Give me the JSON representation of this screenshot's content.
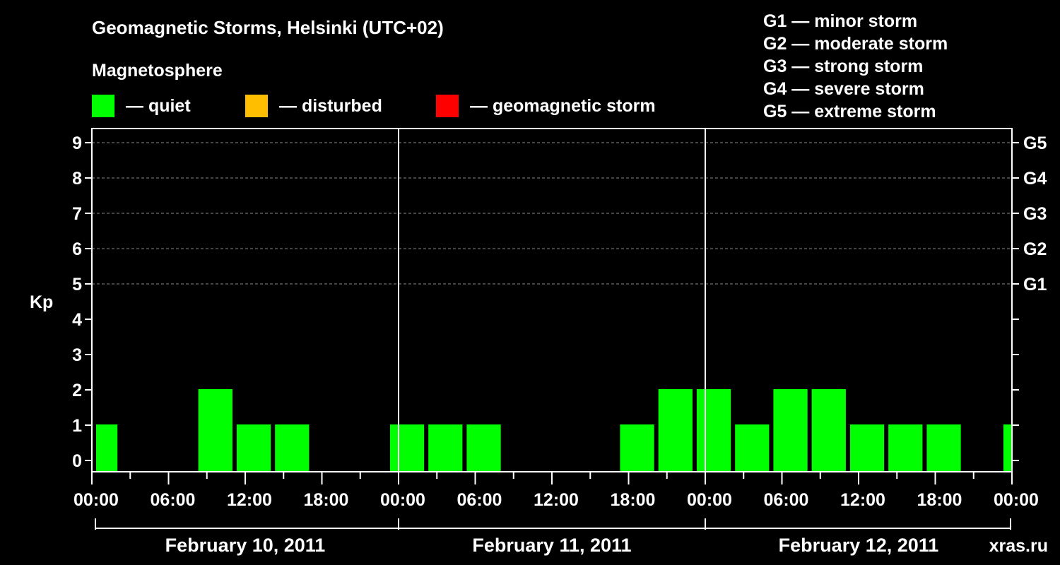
{
  "title": "Geomagnetic Storms, Helsinki (UTC+02)",
  "subtitle": "Magnetosphere",
  "legend": [
    {
      "label": "— quiet",
      "color": "#00ff00"
    },
    {
      "label": "— disturbed",
      "color": "#ffbf00"
    },
    {
      "label": "— geomagnetic storm",
      "color": "#ff0000"
    }
  ],
  "storm_scale": [
    "G1 — minor storm",
    "G2 — moderate storm",
    "G3 — strong storm",
    "G4 — severe storm",
    "G5 — extreme storm"
  ],
  "watermark": "xras.ru",
  "chart_data": {
    "type": "bar",
    "ylabel": "Kp",
    "ylim": [
      0,
      9
    ],
    "yticks": [
      "0",
      "1",
      "2",
      "3",
      "4",
      "5",
      "6",
      "7",
      "8",
      "9"
    ],
    "right_axis": [
      {
        "kp": 5,
        "label": "G1"
      },
      {
        "kp": 6,
        "label": "G2"
      },
      {
        "kp": 7,
        "label": "G3"
      },
      {
        "kp": 8,
        "label": "G4"
      },
      {
        "kp": 9,
        "label": "G5"
      }
    ],
    "grid": true,
    "xticks": [
      "00:00",
      "06:00",
      "12:00",
      "18:00",
      "00:00",
      "06:00",
      "12:00",
      "18:00",
      "00:00",
      "06:00",
      "12:00",
      "18:00",
      "00:00"
    ],
    "days": [
      "February 10, 2011",
      "February 11, 2011",
      "February 12, 2011"
    ],
    "bar_color": "#00ff00",
    "bars": [
      {
        "start": "2011-02-10 00:00",
        "hours": 2,
        "kp": 1
      },
      {
        "start": "2011-02-10 08:00",
        "hours": 3,
        "kp": 2
      },
      {
        "start": "2011-02-10 11:00",
        "hours": 3,
        "kp": 1
      },
      {
        "start": "2011-02-10 14:00",
        "hours": 3,
        "kp": 1
      },
      {
        "start": "2011-02-10 23:00",
        "hours": 3,
        "kp": 1
      },
      {
        "start": "2011-02-11 02:00",
        "hours": 3,
        "kp": 1
      },
      {
        "start": "2011-02-11 05:00",
        "hours": 3,
        "kp": 1
      },
      {
        "start": "2011-02-11 17:00",
        "hours": 3,
        "kp": 1
      },
      {
        "start": "2011-02-11 20:00",
        "hours": 3,
        "kp": 2
      },
      {
        "start": "2011-02-11 23:00",
        "hours": 3,
        "kp": 2
      },
      {
        "start": "2011-02-12 02:00",
        "hours": 3,
        "kp": 1
      },
      {
        "start": "2011-02-12 05:00",
        "hours": 3,
        "kp": 2
      },
      {
        "start": "2011-02-12 08:00",
        "hours": 3,
        "kp": 2
      },
      {
        "start": "2011-02-12 11:00",
        "hours": 3,
        "kp": 1
      },
      {
        "start": "2011-02-12 14:00",
        "hours": 3,
        "kp": 1
      },
      {
        "start": "2011-02-12 17:00",
        "hours": 3,
        "kp": 1
      },
      {
        "start": "2011-02-12 23:00",
        "hours": 1,
        "kp": 1
      }
    ]
  }
}
